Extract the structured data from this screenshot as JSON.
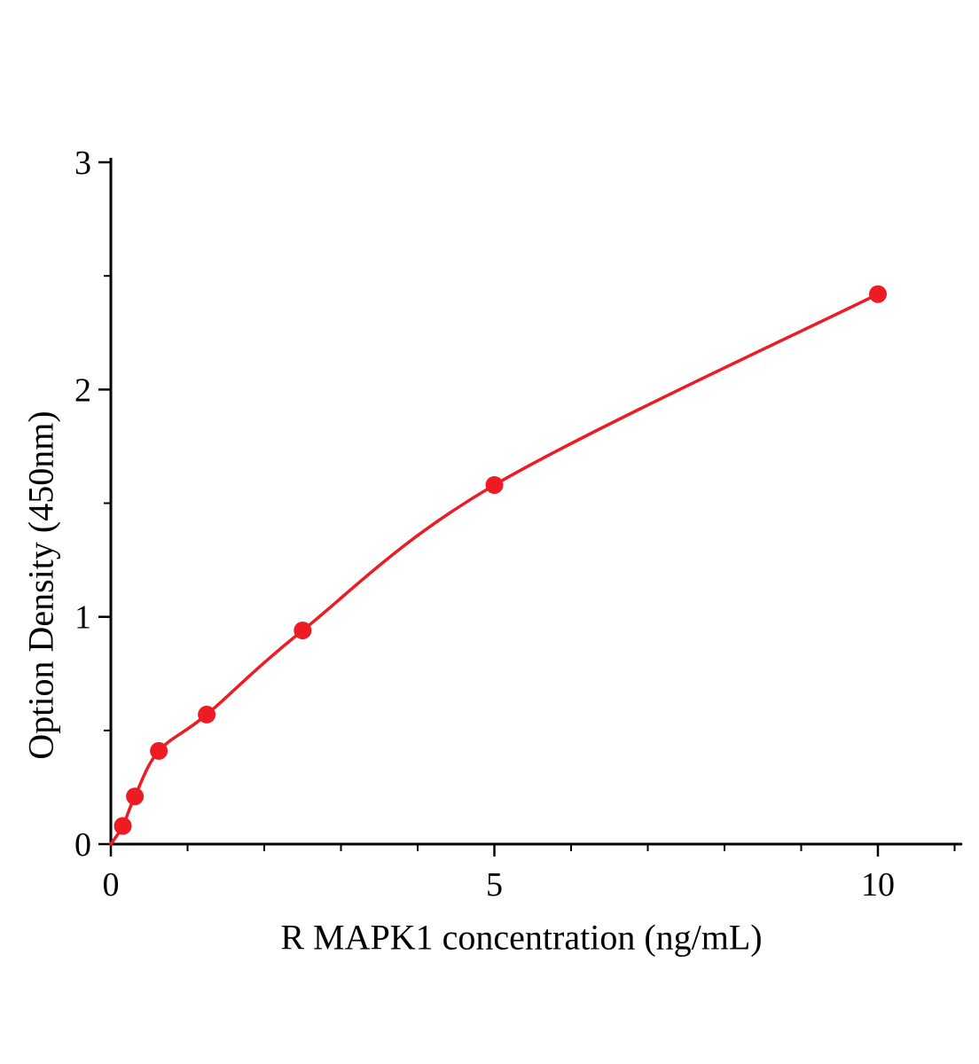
{
  "figure": {
    "background": "#ffffff"
  },
  "chart_data": {
    "type": "scatter",
    "title": "",
    "xlabel": "R MAPK1 concentration (ng/mL)",
    "ylabel": "Option Density (450nm)",
    "x": [
      0.156,
      0.313,
      0.625,
      1.25,
      2.5,
      5,
      10
    ],
    "y": [
      0.08,
      0.21,
      0.41,
      0.57,
      0.94,
      1.58,
      2.42
    ],
    "curve_start": [
      0,
      0
    ],
    "curve": "fitted smooth curve through data points",
    "x_ticks": [
      {
        "value": 0,
        "label": "0"
      },
      {
        "value": 5,
        "label": "5"
      },
      {
        "value": 10,
        "label": "10"
      }
    ],
    "x_minor_ticks": [
      1,
      2,
      3,
      4,
      6,
      7,
      8,
      9,
      11
    ],
    "y_ticks": [
      {
        "value": 0,
        "label": "0"
      },
      {
        "value": 1,
        "label": "1"
      },
      {
        "value": 2,
        "label": "2"
      },
      {
        "value": 3,
        "label": "3"
      }
    ],
    "y_minor_ticks": [
      0.5,
      1.5,
      2.5
    ],
    "xlim": [
      0,
      11.1
    ],
    "ylim": [
      0,
      3
    ],
    "grid": false,
    "legend": false,
    "axis_color": "#000000",
    "series_color": "#ed1c24",
    "marker_size": 10,
    "line_width": 3.5
  }
}
